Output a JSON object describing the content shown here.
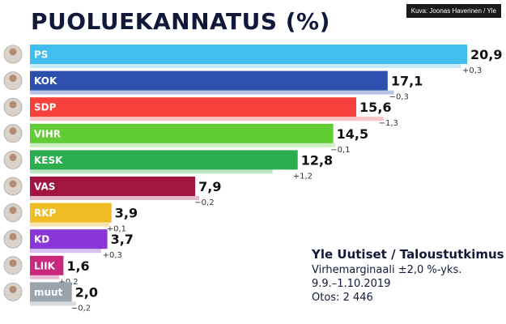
{
  "title": "PUOLUEKANNATUS (%)",
  "credit": "Kuva: Joonas Haverinen / Yle",
  "info": {
    "source": "Yle Uutiset / Taloustutkimus",
    "margin": "Virhemarginaali ±2,0 %-yks.",
    "period": "9.9.–1.10.2019",
    "sample": "Otos: 2 446"
  },
  "chart_data": {
    "type": "bar",
    "orientation": "horizontal",
    "categories": [
      "PS",
      "KOK",
      "SDP",
      "VIHR",
      "KESK",
      "VAS",
      "RKP",
      "KD",
      "LIIK",
      "muut"
    ],
    "values": [
      20.9,
      17.1,
      15.6,
      14.5,
      12.8,
      7.9,
      3.9,
      3.7,
      1.6,
      2.0
    ],
    "value_labels": [
      "20,9",
      "17,1",
      "15,6",
      "14,5",
      "12,8",
      "7,9",
      "3,9",
      "3,7",
      "1,6",
      "2,0"
    ],
    "changes": [
      "+0,3",
      "−0,3",
      "−1,3",
      "−0,1",
      "+1,2",
      "−0,2",
      "+0,1",
      "+0,3",
      "+0,2",
      "−0,2"
    ],
    "previous_values": [
      20.6,
      17.4,
      16.9,
      14.6,
      11.6,
      8.1,
      3.8,
      3.4,
      1.4,
      2.2
    ],
    "colors": [
      "#41bdee",
      "#2d4fad",
      "#f5403c",
      "#62cc35",
      "#2baf4e",
      "#a11640",
      "#f1bd27",
      "#8a35d8",
      "#c8287e",
      "#9aa4ad"
    ],
    "previous_colors": [
      "#c6e9f8",
      "#b6c3e7",
      "#f8c4c3",
      "#cdeec0",
      "#bde6c6",
      "#e4b8c5",
      "#f6e2ab",
      "#d8c1f2",
      "#ecbcd6",
      "#d6dadd"
    ],
    "title": "PUOLUEKANNATUS (%)",
    "xlim": [
      0,
      20.9
    ]
  }
}
